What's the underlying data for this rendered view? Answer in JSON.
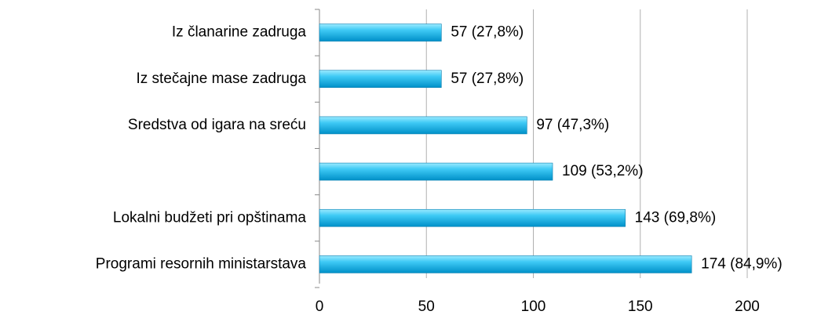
{
  "chart_data": {
    "type": "bar",
    "orientation": "horizontal",
    "categories": [
      "Iz članarine zadruga",
      "Iz stečajne mase zadruga",
      "Sredstva od igara na sreću",
      null,
      "Lokalni budžeti pri opštinama",
      "Programi resornih ministarstava"
    ],
    "values": [
      57,
      57,
      97,
      109,
      143,
      174
    ],
    "value_labels": [
      "57 (27,8%)",
      "57 (27,8%)",
      "97 (47,3%)",
      "109 (53,2%)",
      "143 (69,8%)",
      "174 (84,9%)"
    ],
    "color": "#1ab8ea",
    "xlim": [
      0,
      200
    ],
    "xticks": [
      0,
      50,
      100,
      150,
      200
    ],
    "grid": true
  }
}
